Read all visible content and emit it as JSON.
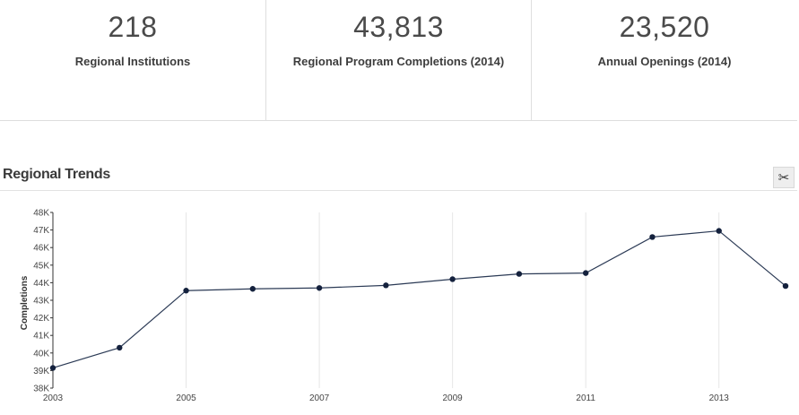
{
  "stats": [
    {
      "value": "218",
      "label": "Regional Institutions"
    },
    {
      "value": "43,813",
      "label": "Regional Program Completions (2014)"
    },
    {
      "value": "23,520",
      "label": "Annual Openings (2014)"
    }
  ],
  "section": {
    "title": "Regional Trends",
    "tool_icon": "scissors-icon",
    "tool_glyph": "✂"
  },
  "colors": {
    "line": "#2b3a55",
    "point": "#14213d",
    "grid": "#e6e6e6",
    "axis": "#333333"
  },
  "chart_data": {
    "type": "line",
    "title": "Regional Trends",
    "xlabel": "",
    "ylabel": "Completions",
    "ylim": [
      38000,
      48000
    ],
    "xlim": [
      2003,
      2014
    ],
    "y_ticks": [
      38000,
      39000,
      40000,
      41000,
      42000,
      43000,
      44000,
      45000,
      46000,
      47000,
      48000
    ],
    "y_tick_labels": [
      "38K",
      "39K",
      "40K",
      "41K",
      "42K",
      "43K",
      "44K",
      "45K",
      "46K",
      "47K",
      "48K"
    ],
    "x_ticks": [
      2003,
      2005,
      2007,
      2009,
      2011,
      2013
    ],
    "x_tick_labels": [
      "2003",
      "2005",
      "2007",
      "2009",
      "2011",
      "2013"
    ],
    "grid": "vertical",
    "series": [
      {
        "name": "Completions",
        "x": [
          2003,
          2004,
          2005,
          2006,
          2007,
          2008,
          2009,
          2010,
          2011,
          2012,
          2013,
          2014
        ],
        "values": [
          39150,
          40300,
          43550,
          43650,
          43700,
          43850,
          44200,
          44500,
          44550,
          46600,
          46950,
          43813
        ]
      }
    ]
  }
}
